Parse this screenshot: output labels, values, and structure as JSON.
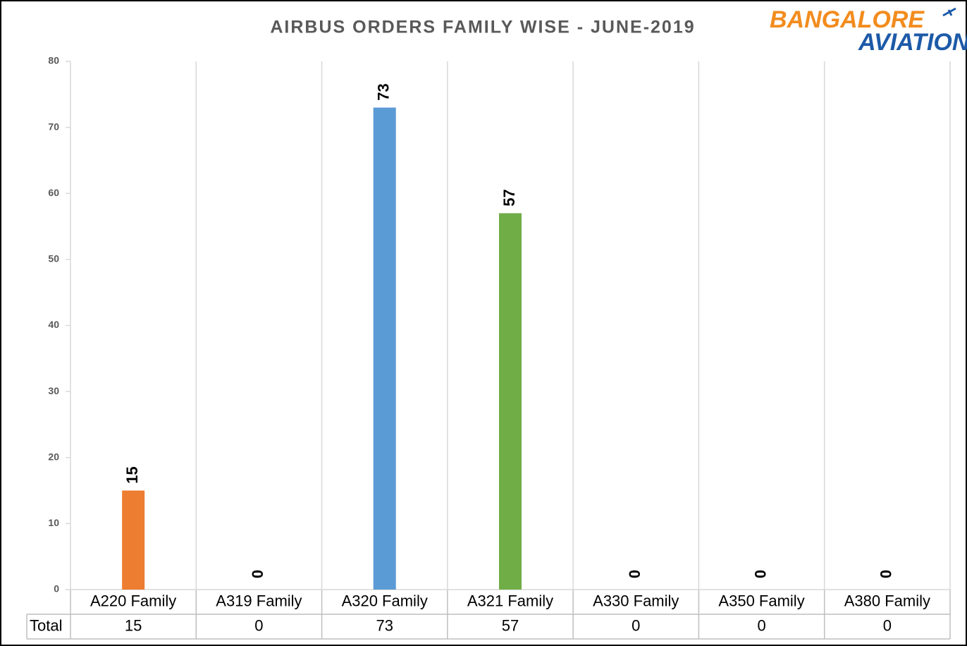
{
  "chart_data": {
    "type": "bar",
    "title": "AIRBUS ORDERS FAMILY WISE -  JUNE-2019",
    "logo": {
      "line1": "BANGALORE",
      "line2": "AVIATION"
    },
    "categories": [
      "A220 Family",
      "A319 Family",
      "A320 Family",
      "A321 Family",
      "A330 Family",
      "A350 Family",
      "A380 Family"
    ],
    "series": [
      {
        "name": "Total",
        "values": [
          15,
          0,
          73,
          57,
          0,
          0,
          0
        ],
        "colors": [
          "#ed7d31",
          null,
          "#5b9bd5",
          "#70ad47",
          null,
          null,
          null
        ]
      }
    ],
    "ylim": [
      0,
      80
    ],
    "yticks": [
      0,
      10,
      20,
      30,
      40,
      50,
      60,
      70,
      80
    ],
    "data_table": true
  }
}
